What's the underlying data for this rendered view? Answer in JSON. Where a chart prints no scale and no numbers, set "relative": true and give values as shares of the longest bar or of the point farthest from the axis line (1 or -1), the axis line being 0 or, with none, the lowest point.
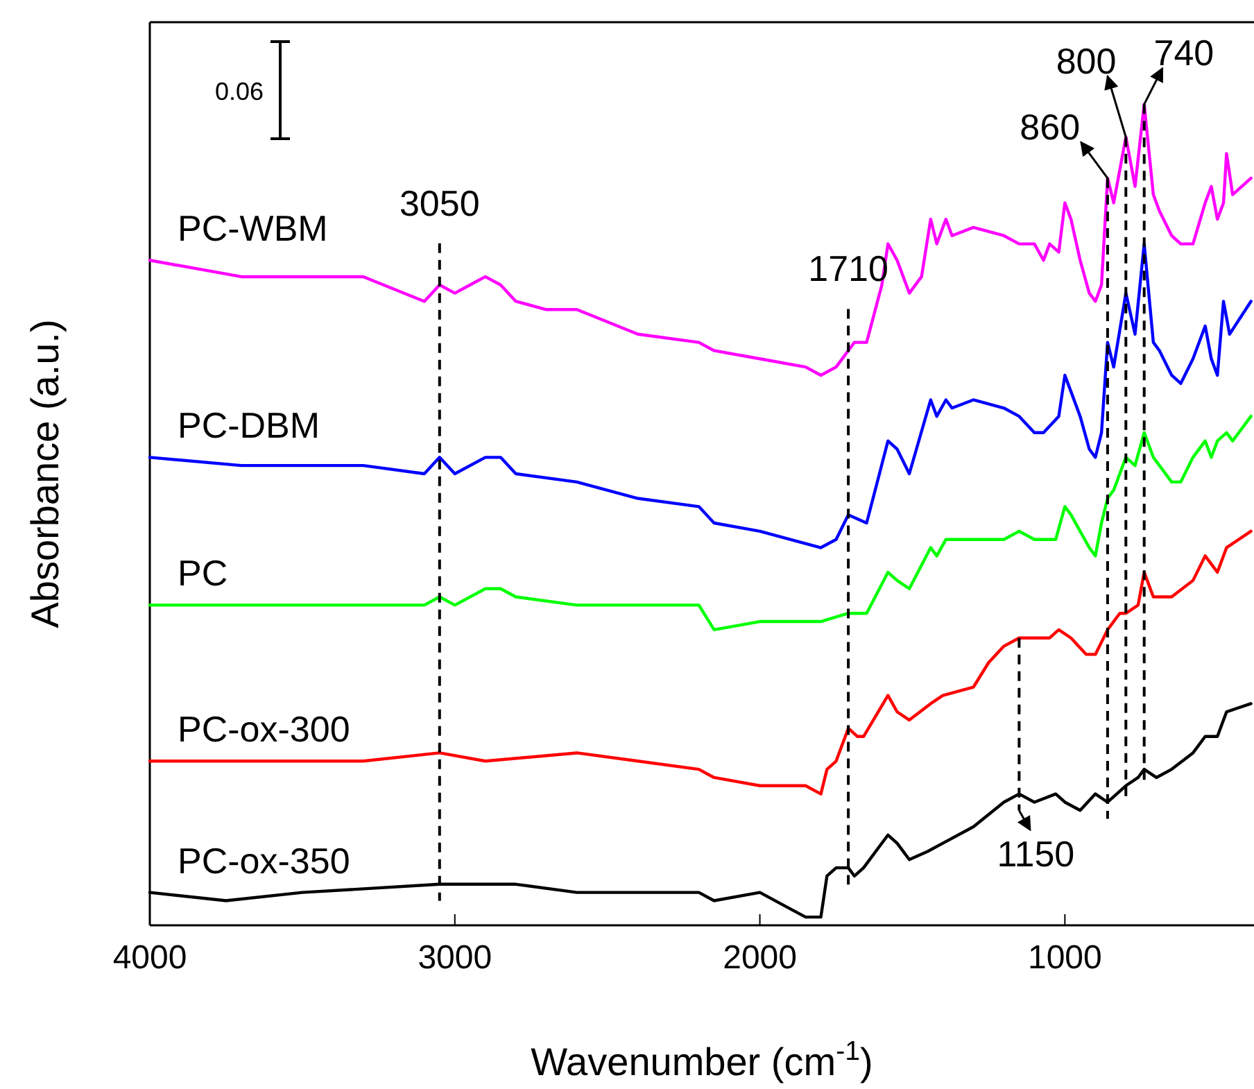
{
  "chart_data": {
    "type": "line",
    "relative": true,
    "xlabel": "Wavenumber (cm$^{-1}$)",
    "ylabel": "Absorbance (a.u.)",
    "xlim": [
      4000,
      380
    ],
    "xticks": [
      4000,
      3000,
      2000,
      1000
    ],
    "legend": false,
    "grid": false,
    "x": [
      4000,
      3700,
      3300,
      3100,
      3050,
      3000,
      2950,
      2900,
      2850,
      2800,
      2700,
      2600,
      2400,
      2200,
      2150,
      2000,
      1850,
      1800,
      1750,
      1710,
      1690,
      1650,
      1600,
      1580,
      1550,
      1510,
      1470,
      1440,
      1420,
      1390,
      1370,
      1300,
      1200,
      1150,
      1100,
      1070,
      1050,
      1020,
      1000,
      980,
      950,
      920,
      900,
      880,
      860,
      840,
      800,
      770,
      740,
      710,
      690,
      650,
      620,
      580,
      540,
      520,
      500,
      480,
      470,
      450,
      390
    ],
    "series": [
      {
        "name": "PC-WBM",
        "color": "#ff00ff",
        "values": [
          0.81,
          0.79,
          0.79,
          0.76,
          0.78,
          0.77,
          0.78,
          0.79,
          0.78,
          0.76,
          0.75,
          0.75,
          0.72,
          0.71,
          0.7,
          0.69,
          0.68,
          0.67,
          0.68,
          0.7,
          0.71,
          0.71,
          0.78,
          0.83,
          0.81,
          0.77,
          0.79,
          0.86,
          0.83,
          0.86,
          0.84,
          0.85,
          0.84,
          0.83,
          0.83,
          0.81,
          0.83,
          0.82,
          0.88,
          0.86,
          0.81,
          0.77,
          0.76,
          0.78,
          0.91,
          0.88,
          0.96,
          0.9,
          1.0,
          0.89,
          0.87,
          0.84,
          0.83,
          0.83,
          0.88,
          0.9,
          0.86,
          0.88,
          0.94,
          0.89,
          0.91
        ]
      },
      {
        "name": "PC-DBM",
        "color": "#0000ff",
        "x": [
          4000,
          3700,
          3300,
          3100,
          3050,
          3000,
          2900,
          2850,
          2800,
          2600,
          2400,
          2200,
          2150,
          2000,
          1800,
          1750,
          1710,
          1650,
          1580,
          1550,
          1510,
          1440,
          1420,
          1390,
          1370,
          1300,
          1200,
          1150,
          1100,
          1070,
          1020,
          1000,
          980,
          950,
          920,
          900,
          880,
          860,
          840,
          800,
          770,
          740,
          710,
          690,
          650,
          620,
          580,
          540,
          520,
          500,
          480,
          460,
          390
        ],
        "values": [
          0.57,
          0.56,
          0.56,
          0.55,
          0.57,
          0.55,
          0.57,
          0.57,
          0.55,
          0.54,
          0.52,
          0.51,
          0.49,
          0.48,
          0.46,
          0.47,
          0.5,
          0.49,
          0.59,
          0.58,
          0.55,
          0.64,
          0.62,
          0.64,
          0.63,
          0.64,
          0.63,
          0.62,
          0.6,
          0.6,
          0.62,
          0.67,
          0.65,
          0.62,
          0.58,
          0.57,
          0.6,
          0.71,
          0.68,
          0.77,
          0.72,
          0.83,
          0.71,
          0.7,
          0.67,
          0.66,
          0.69,
          0.73,
          0.69,
          0.67,
          0.76,
          0.72,
          0.76
        ]
      },
      {
        "name": "PC",
        "color": "#00ff00",
        "x": [
          4000,
          3700,
          3300,
          3100,
          3050,
          3000,
          2900,
          2850,
          2800,
          2600,
          2400,
          2200,
          2150,
          2000,
          1800,
          1710,
          1650,
          1580,
          1550,
          1510,
          1440,
          1420,
          1390,
          1300,
          1200,
          1150,
          1100,
          1070,
          1030,
          1000,
          980,
          950,
          920,
          900,
          880,
          860,
          840,
          800,
          770,
          740,
          710,
          690,
          650,
          620,
          580,
          540,
          520,
          500,
          470,
          450,
          390
        ],
        "values": [
          0.39,
          0.39,
          0.39,
          0.39,
          0.4,
          0.39,
          0.41,
          0.41,
          0.4,
          0.39,
          0.39,
          0.39,
          0.36,
          0.37,
          0.37,
          0.38,
          0.38,
          0.43,
          0.42,
          0.41,
          0.46,
          0.45,
          0.47,
          0.47,
          0.47,
          0.48,
          0.47,
          0.47,
          0.47,
          0.51,
          0.5,
          0.48,
          0.46,
          0.45,
          0.49,
          0.52,
          0.53,
          0.57,
          0.56,
          0.6,
          0.57,
          0.56,
          0.54,
          0.54,
          0.57,
          0.59,
          0.57,
          0.59,
          0.6,
          0.59,
          0.62
        ]
      },
      {
        "name": "PC-ox-300",
        "color": "#ff0000",
        "x": [
          4000,
          3700,
          3300,
          3050,
          2900,
          2600,
          2400,
          2200,
          2150,
          2000,
          1850,
          1800,
          1780,
          1750,
          1710,
          1680,
          1660,
          1580,
          1550,
          1510,
          1440,
          1400,
          1300,
          1250,
          1200,
          1150,
          1100,
          1050,
          1020,
          980,
          930,
          900,
          860,
          820,
          800,
          760,
          740,
          710,
          650,
          580,
          540,
          500,
          470,
          390
        ],
        "values": [
          0.2,
          0.2,
          0.2,
          0.21,
          0.2,
          0.21,
          0.2,
          0.19,
          0.18,
          0.17,
          0.17,
          0.16,
          0.19,
          0.2,
          0.24,
          0.23,
          0.23,
          0.28,
          0.26,
          0.25,
          0.27,
          0.28,
          0.29,
          0.32,
          0.34,
          0.35,
          0.35,
          0.35,
          0.36,
          0.35,
          0.33,
          0.33,
          0.36,
          0.38,
          0.38,
          0.39,
          0.43,
          0.4,
          0.4,
          0.42,
          0.45,
          0.43,
          0.46,
          0.48
        ]
      },
      {
        "name": "PC-ox-350",
        "color": "#000000",
        "x": [
          4000,
          3750,
          3500,
          3050,
          2800,
          2600,
          2400,
          2200,
          2150,
          2000,
          1900,
          1850,
          1800,
          1780,
          1750,
          1710,
          1690,
          1660,
          1580,
          1550,
          1510,
          1450,
          1400,
          1300,
          1200,
          1150,
          1100,
          1030,
          1000,
          950,
          900,
          860,
          800,
          760,
          740,
          700,
          650,
          580,
          540,
          500,
          470,
          390
        ],
        "values": [
          0.04,
          0.03,
          0.04,
          0.05,
          0.05,
          0.04,
          0.04,
          0.04,
          0.03,
          0.04,
          0.02,
          0.01,
          0.01,
          0.06,
          0.07,
          0.07,
          0.06,
          0.07,
          0.11,
          0.1,
          0.08,
          0.09,
          0.1,
          0.12,
          0.15,
          0.16,
          0.15,
          0.16,
          0.15,
          0.14,
          0.16,
          0.15,
          0.17,
          0.18,
          0.19,
          0.18,
          0.19,
          0.21,
          0.23,
          0.23,
          0.26,
          0.27
        ]
      }
    ],
    "annotations": [
      "0.06",
      {
        "text": "3050",
        "x": 3050,
        "y": 0.78
      },
      {
        "text": "1710",
        "x": 1710,
        "y": 0.7
      },
      {
        "text": "1150",
        "x": 1150,
        "y": 0.35
      },
      {
        "text": "860",
        "x": 860,
        "y": 0.91
      },
      {
        "text": "800",
        "x": 800,
        "y": 0.96
      },
      {
        "text": "740",
        "x": 740,
        "y": 1.0
      }
    ]
  }
}
